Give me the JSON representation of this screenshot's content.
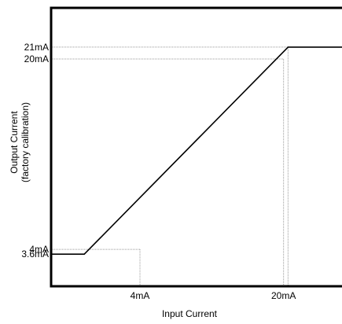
{
  "chart_data": {
    "type": "line",
    "title": "",
    "xlabel": "Input Current",
    "ylabel_lines": [
      "Output Current",
      "(factory calibration)"
    ],
    "x_ticks": [
      {
        "value": 4,
        "label": "4mA"
      },
      {
        "value": 20,
        "label": "20mA"
      }
    ],
    "y_ticks": [
      {
        "value": 3.6,
        "label": "3.6mA"
      },
      {
        "value": 4,
        "label": "4mA"
      },
      {
        "value": 20,
        "label": "20mA"
      },
      {
        "value": 21,
        "label": "21mA"
      }
    ],
    "xlim": [
      -5.9,
      26.6
    ],
    "ylim": [
      0.9,
      24.3
    ],
    "series": [
      {
        "x": [
          -5.9,
          -2.2,
          20.5,
          26.6
        ],
        "y": [
          3.6,
          3.6,
          21,
          21
        ]
      }
    ],
    "reference_lines": [
      {
        "x": 4,
        "y": 4
      },
      {
        "x": 20,
        "y": 20
      },
      {
        "x": 20.5,
        "y": 21
      }
    ],
    "grid": false,
    "legend": "none"
  },
  "colors": {
    "line": "#000000",
    "axis": "#000000",
    "guide": "#9a9a9a"
  }
}
